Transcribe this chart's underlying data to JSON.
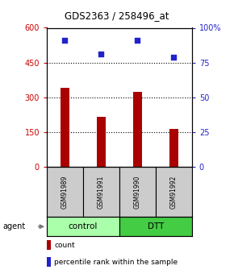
{
  "title": "GDS2363 / 258496_at",
  "samples": [
    "GSM91989",
    "GSM91991",
    "GSM91990",
    "GSM91992"
  ],
  "counts": [
    340,
    215,
    325,
    165
  ],
  "percentiles": [
    91,
    81,
    91,
    79
  ],
  "bar_color": "#AA0000",
  "dot_color": "#2222CC",
  "ylim_left": [
    0,
    600
  ],
  "ylim_right": [
    0,
    100
  ],
  "yticks_left": [
    0,
    150,
    300,
    450,
    600
  ],
  "yticks_right": [
    0,
    25,
    50,
    75,
    100
  ],
  "ytick_labels_left": [
    "0",
    "150",
    "300",
    "450",
    "600"
  ],
  "ytick_labels_right": [
    "0",
    "25",
    "50",
    "75",
    "100%"
  ],
  "groups": [
    {
      "label": "control",
      "color": "#AAFFAA"
    },
    {
      "label": "DTT",
      "color": "#44CC44"
    }
  ],
  "agent_label": "agent",
  "legend_count_label": "count",
  "legend_pct_label": "percentile rank within the sample",
  "bg_color": "#FFFFFF",
  "sample_box_color": "#CCCCCC"
}
